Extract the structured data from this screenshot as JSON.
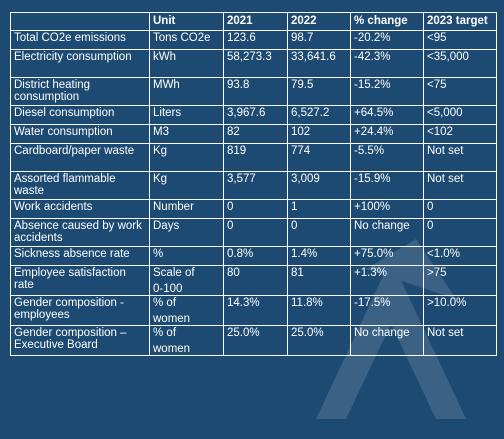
{
  "table": {
    "headers": [
      "",
      "Unit",
      "2021",
      "2022",
      "% change",
      "2023 target"
    ],
    "rows": [
      {
        "metric": "Total CO2e emissions",
        "unit": "Tons CO2e",
        "y2021": "123.6",
        "y2022": "98.7",
        "change": "-20.2%",
        "target": "<95"
      },
      {
        "metric": "Electricity consumption",
        "unit": "kWh",
        "y2021": "58,273.3",
        "y2022": "33,641.6",
        "change": "-42.3%",
        "target": "<35,000"
      },
      {
        "metric": "District heating consumption",
        "unit": "MWh",
        "y2021": "93.8",
        "y2022": "79.5",
        "change": "-15.2%",
        "target": "<75"
      },
      {
        "metric": "Diesel consumption",
        "unit": "Liters",
        "y2021": "3,967.6",
        "y2022": "6,527.2",
        "change": "+64.5%",
        "target": "<5,000"
      },
      {
        "metric": "Water consumption",
        "unit": "M3",
        "y2021": "82",
        "y2022": "102",
        "change": "+24.4%",
        "target": "<102"
      },
      {
        "metric": "Cardboard/paper waste",
        "unit": "Kg",
        "y2021": "819",
        "y2022": "774",
        "change": "-5.5%",
        "target": "Not set"
      },
      {
        "metric": "Assorted flammable waste",
        "unit": "Kg",
        "y2021": "3,577",
        "y2022": "3,009",
        "change": "-15.9%",
        "target": "Not set"
      },
      {
        "metric": "Work accidents",
        "unit": "Number",
        "y2021": "0",
        "y2022": "1",
        "change": "+100%",
        "target": "0"
      },
      {
        "metric": "Absence caused by work accidents",
        "unit": "Days",
        "y2021": "0",
        "y2022": "0",
        "change": "No change",
        "target": "0"
      },
      {
        "metric": "Sickness absence rate",
        "unit": "%",
        "y2021": "0.8%",
        "y2022": "1.4%",
        "change": "+75.0%",
        "target": "<1.0%"
      },
      {
        "metric": "Employee satisfaction rate",
        "unit_line1": "Scale of",
        "unit_line2": "0-100",
        "y2021": "80",
        "y2022": "81",
        "change": "+1.3%",
        "target": ">75"
      },
      {
        "metric": "Gender composition - employees",
        "unit_line1": "% of",
        "unit_line2": "women",
        "y2021": "14.3%",
        "y2022": "11.8%",
        "change": "-17.5%",
        "target": ">10.0%"
      },
      {
        "metric": "Gender composition – Executive Board",
        "unit_line1": "% of",
        "unit_line2": "women",
        "y2021": "25.0%",
        "y2022": "25.0%",
        "change": "No change",
        "target": "Not set"
      }
    ]
  },
  "colors": {
    "background": "#1d4a72",
    "text": "#ffffff",
    "border": "#ffffff"
  }
}
